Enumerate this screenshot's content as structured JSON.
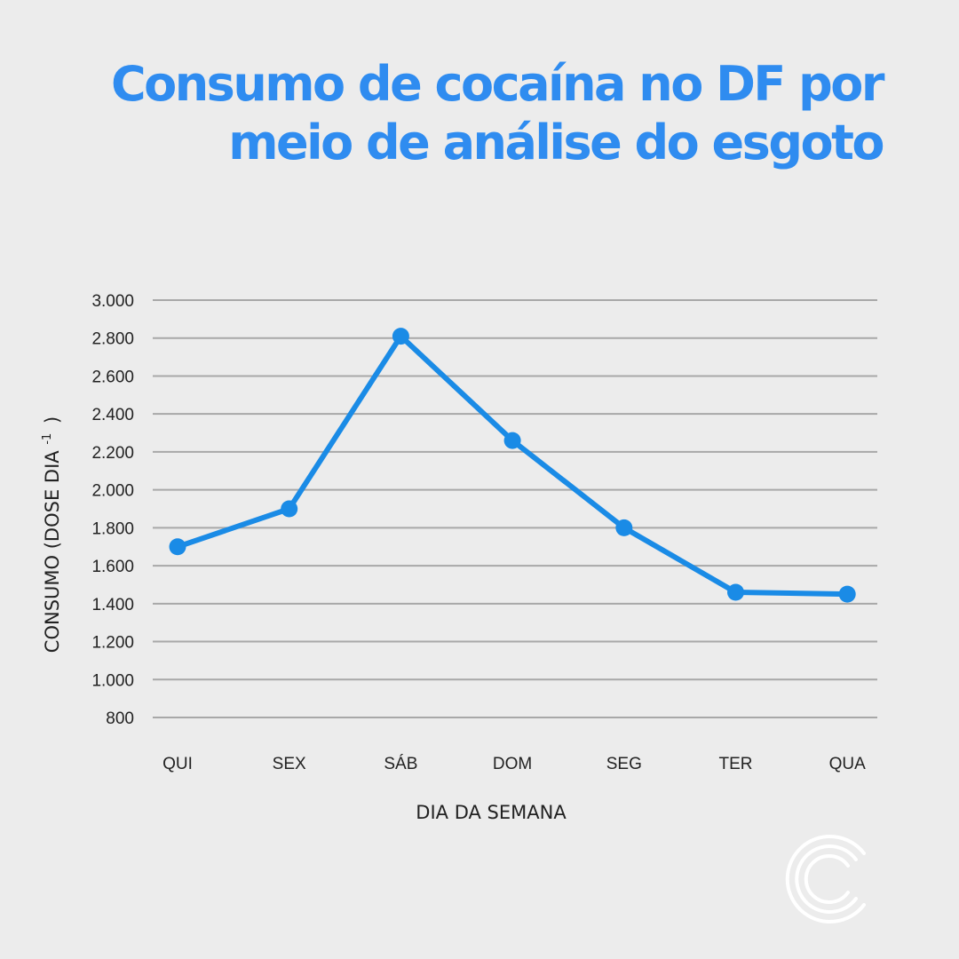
{
  "title": {
    "line1": "Consumo de cocaína no DF por",
    "line2": "meio de análise do esgoto"
  },
  "chart_data": {
    "type": "line",
    "title": "Consumo de cocaína no DF por meio de análise do esgoto",
    "xlabel": "DIA DA SEMANA",
    "ylabel": "CONSUMO (DOSE DIA",
    "ylabel_sup": "-1",
    "ylabel_close": ")",
    "categories": [
      "QUI",
      "SEX",
      "SÁB",
      "DOM",
      "SEG",
      "TER",
      "QUA"
    ],
    "series": [
      {
        "values": [
          1700,
          1900,
          2810,
          2260,
          1800,
          1460,
          1450
        ]
      }
    ],
    "ylim": [
      800,
      3000
    ],
    "yticks": [
      800,
      1000,
      1200,
      1400,
      1600,
      1800,
      2000,
      2200,
      2400,
      2600,
      2800,
      3000
    ],
    "ytick_labels": [
      "800",
      "1.000",
      "1.200",
      "1.400",
      "1.600",
      "1.800",
      "2.000",
      "2.200",
      "2.400",
      "2.600",
      "2.800",
      "3.000"
    ],
    "grid": true,
    "legend": "none"
  },
  "colors": {
    "background": "#ececec",
    "title": "#2f8cf0",
    "line": "#1a8be6",
    "grid": "#a8a8a8",
    "text": "#222222",
    "logo": "#ffffff"
  },
  "logo": {
    "icon": "c-rings-logo"
  }
}
